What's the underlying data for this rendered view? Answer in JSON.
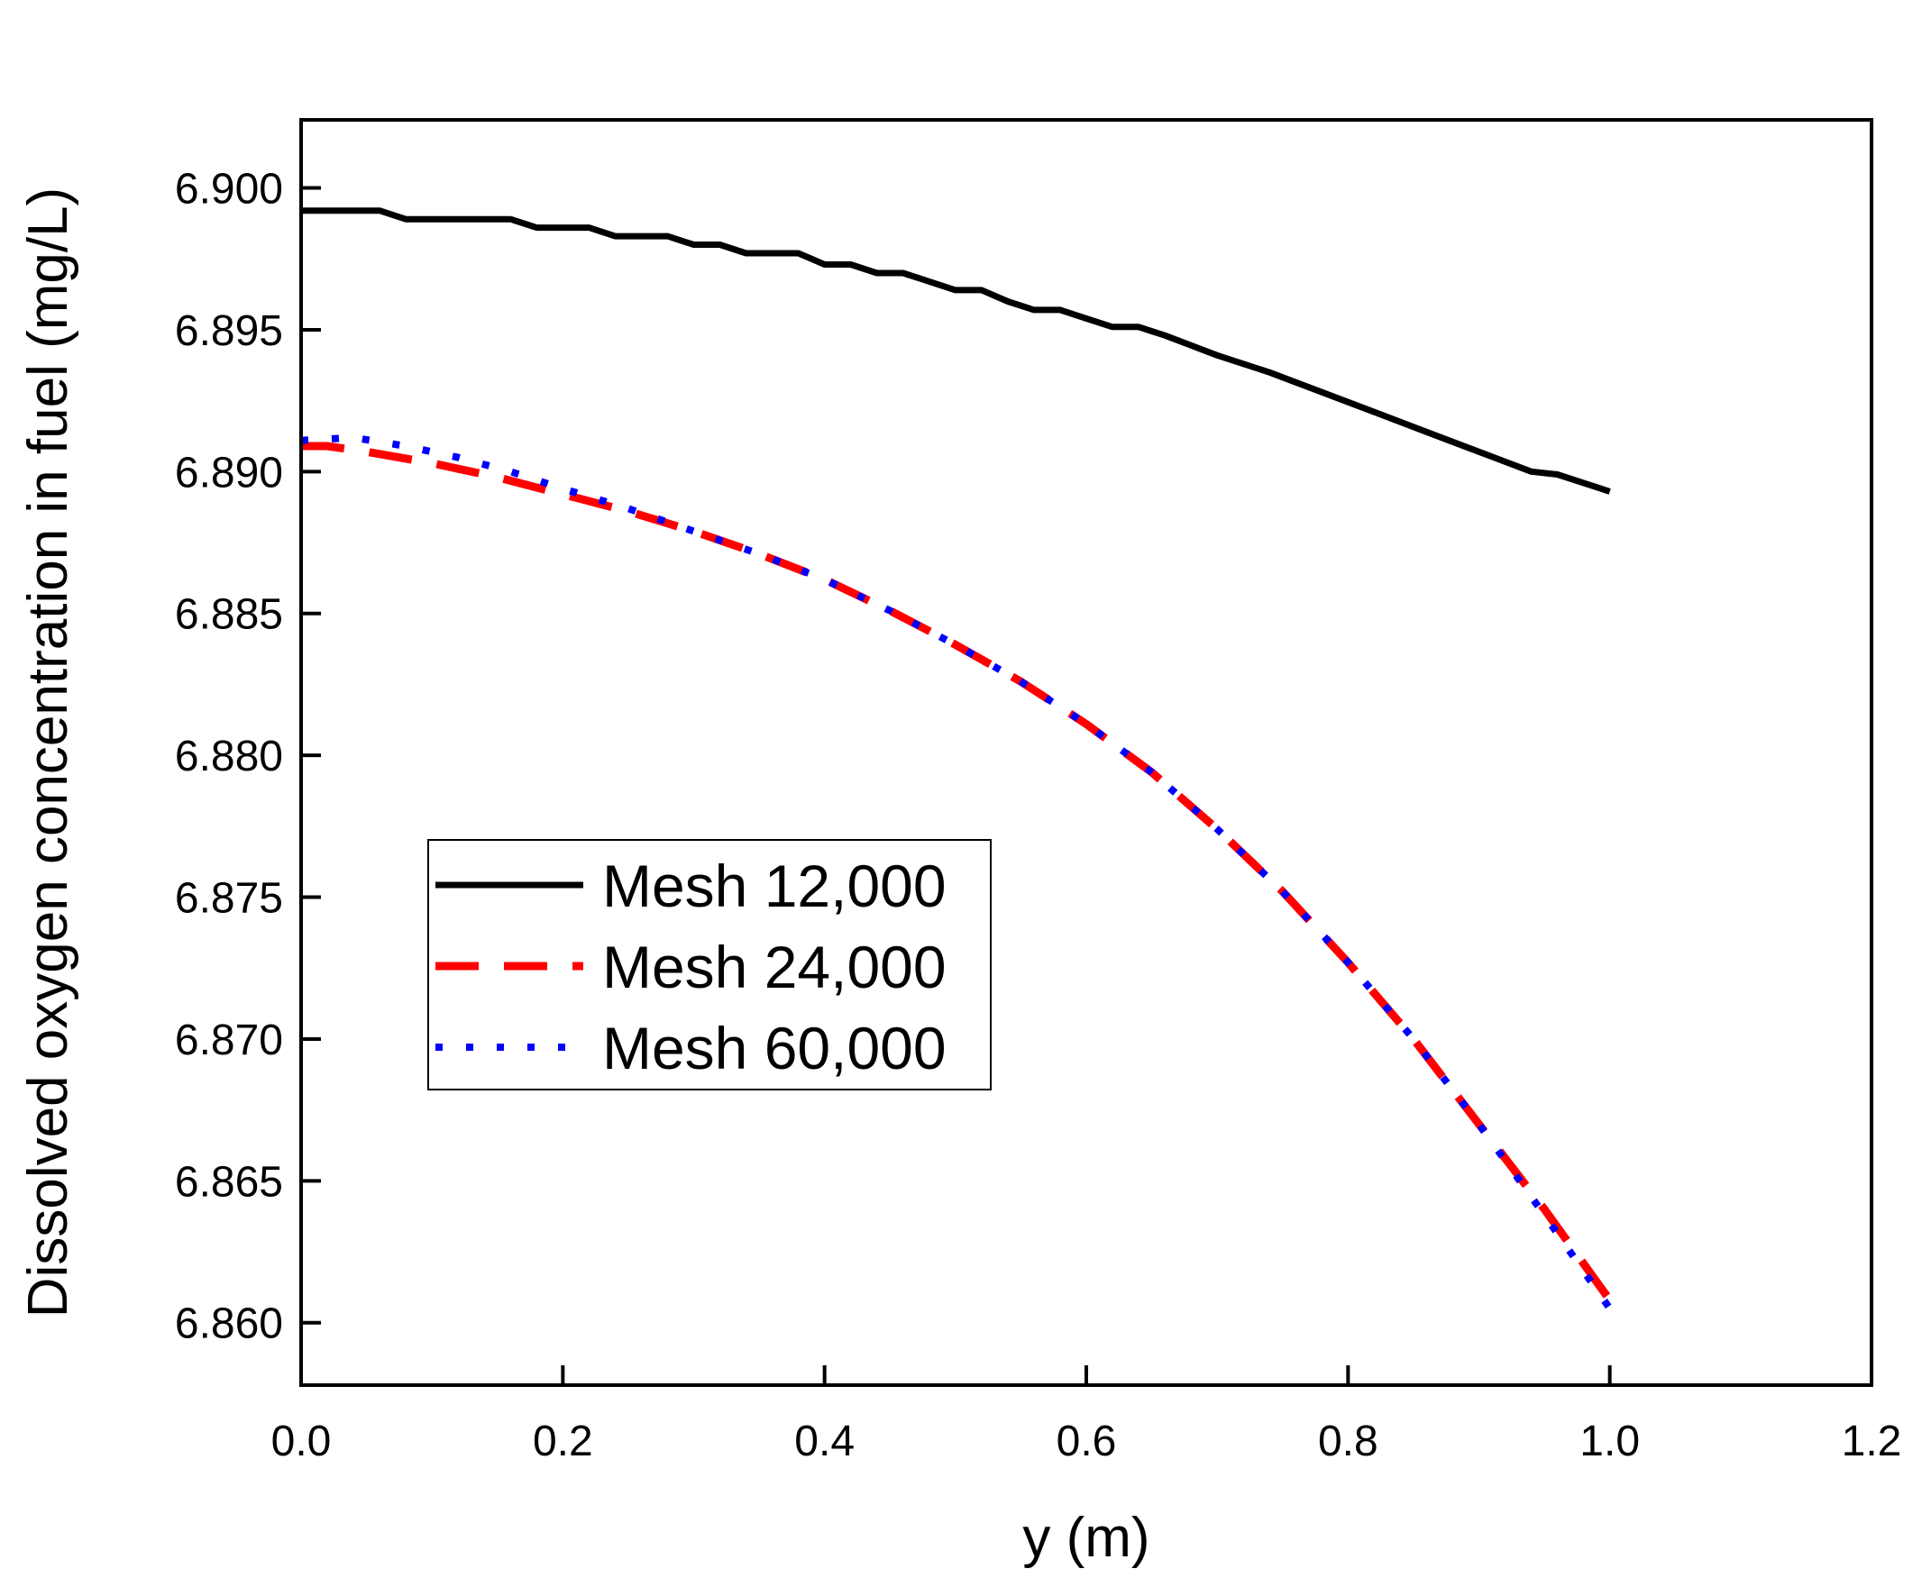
{
  "chart_data": {
    "type": "line",
    "title": "",
    "xlabel": "y (m)",
    "ylabel": "Dissolved oxygen concentration in fuel (mg/L)",
    "xlim": [
      0.0,
      1.2
    ],
    "ylim": [
      6.8578,
      6.9024
    ],
    "x_ticks": [
      "0.0",
      "0.2",
      "0.4",
      "0.6",
      "0.8",
      "1.0",
      "1.2"
    ],
    "x_tick_values": [
      0.0,
      0.2,
      0.4,
      0.6,
      0.8,
      1.0,
      1.2
    ],
    "y_ticks": [
      "6.860",
      "6.865",
      "6.870",
      "6.875",
      "6.880",
      "6.885",
      "6.890",
      "6.895",
      "6.900"
    ],
    "y_tick_values": [
      6.86,
      6.865,
      6.87,
      6.875,
      6.88,
      6.885,
      6.89,
      6.895,
      6.9
    ],
    "grid": false,
    "legend_position": "center-left",
    "series": [
      {
        "name": "Mesh 12,000",
        "color": "#000000",
        "style": "solid",
        "x": [
          0.0,
          0.06,
          0.08,
          0.16,
          0.18,
          0.22,
          0.24,
          0.28,
          0.3,
          0.32,
          0.34,
          0.38,
          0.4,
          0.42,
          0.44,
          0.46,
          0.48,
          0.5,
          0.52,
          0.54,
          0.56,
          0.58,
          0.6,
          0.62,
          0.64,
          0.66,
          0.7,
          0.74,
          0.78,
          0.82,
          0.86,
          0.9,
          0.94,
          0.96,
          0.98,
          1.0
        ],
        "y": [
          6.8992,
          6.8992,
          6.8989,
          6.8989,
          6.8986,
          6.8986,
          6.8983,
          6.8983,
          6.898,
          6.898,
          6.8977,
          6.8977,
          6.8973,
          6.8973,
          6.897,
          6.897,
          6.8967,
          6.8964,
          6.8964,
          6.896,
          6.8957,
          6.8957,
          6.8954,
          6.8951,
          6.8951,
          6.8948,
          6.8941,
          6.8935,
          6.8928,
          6.8921,
          6.8914,
          6.8907,
          6.89,
          6.8899,
          6.8896,
          6.8893
        ]
      },
      {
        "name": "Mesh 24,000",
        "color": "#ff0000",
        "style": "dashed",
        "x": [
          0.0,
          0.02,
          0.05,
          0.1,
          0.15,
          0.2,
          0.25,
          0.3,
          0.35,
          0.4,
          0.45,
          0.5,
          0.55,
          0.6,
          0.65,
          0.7,
          0.75,
          0.8,
          0.85,
          0.9,
          0.95,
          1.0
        ],
        "y": [
          6.8909,
          6.8909,
          6.8907,
          6.8903,
          6.8898,
          6.8892,
          6.8886,
          6.8879,
          6.8871,
          6.8862,
          6.8851,
          6.8839,
          6.8826,
          6.8811,
          6.8794,
          6.8774,
          6.8752,
          6.8727,
          6.87,
          6.867,
          6.864,
          6.8608
        ]
      },
      {
        "name": "Mesh 60,000",
        "color": "#0000ff",
        "style": "dotted",
        "x": [
          0.0,
          0.04,
          0.08,
          0.12,
          0.16,
          0.2,
          0.25,
          0.3,
          0.35,
          0.4,
          0.45,
          0.5,
          0.55,
          0.6,
          0.65,
          0.7,
          0.75,
          0.8,
          0.85,
          0.9,
          0.95,
          1.0
        ],
        "y": [
          6.8911,
          6.8912,
          6.8909,
          6.8905,
          6.89,
          6.8894,
          6.8887,
          6.8879,
          6.8871,
          6.8862,
          6.8851,
          6.8839,
          6.8826,
          6.8811,
          6.8794,
          6.8774,
          6.8752,
          6.8727,
          6.87,
          6.867,
          6.8638,
          6.8605
        ]
      }
    ]
  }
}
